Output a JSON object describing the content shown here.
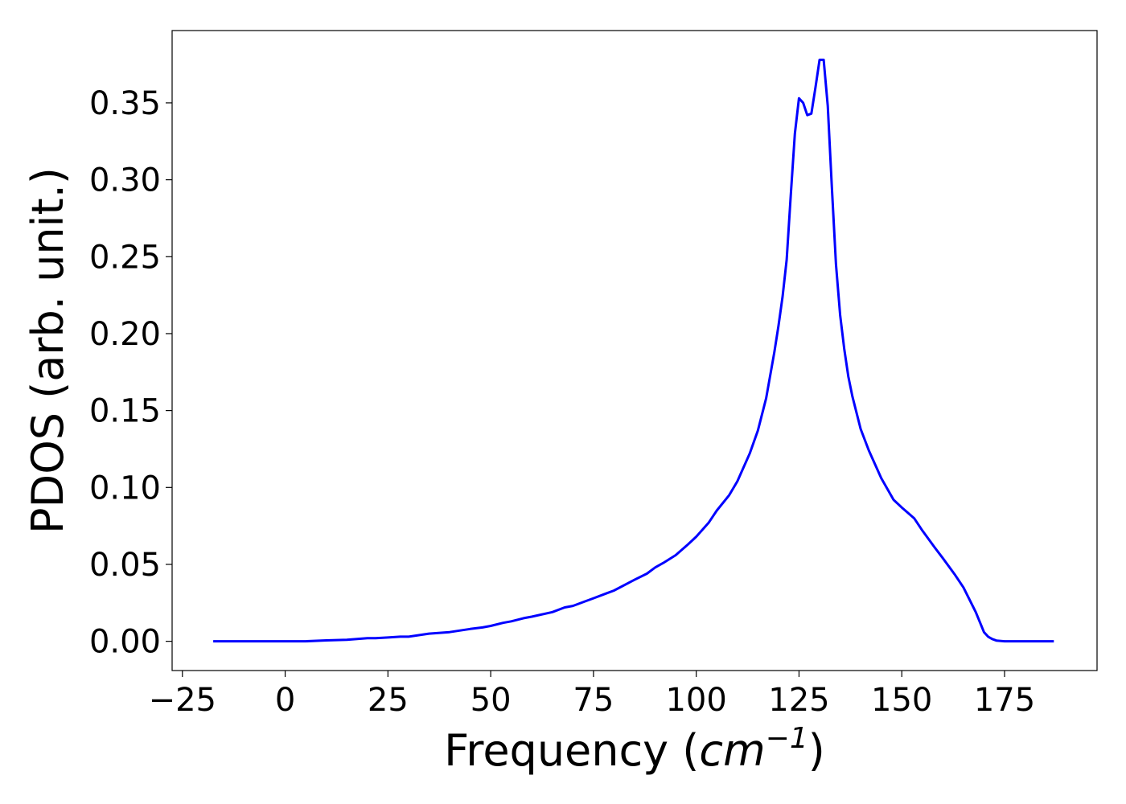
{
  "chart_data": {
    "type": "line",
    "title": "",
    "xlabel": "Frequency (",
    "xlabel_unit_base": "cm",
    "xlabel_unit_exp": "−1",
    "xlabel_suffix": ")",
    "ylabel": "PDOS (arb. unit.)",
    "xlim": [
      -27.5,
      197.5
    ],
    "ylim": [
      -0.019,
      0.397
    ],
    "grid": false,
    "legend": "none",
    "x_ticks": [
      -25,
      0,
      25,
      50,
      75,
      100,
      125,
      150,
      175
    ],
    "x_tick_labels": [
      "−25",
      "0",
      "25",
      "50",
      "75",
      "100",
      "125",
      "150",
      "175"
    ],
    "y_ticks": [
      0.0,
      0.05,
      0.1,
      0.15,
      0.2,
      0.25,
      0.3,
      0.35
    ],
    "y_tick_labels": [
      "0.00",
      "0.05",
      "0.10",
      "0.15",
      "0.20",
      "0.25",
      "0.30",
      "0.35"
    ],
    "series": [
      {
        "color": "#0000ff",
        "x": [
          -17.5,
          -10,
          0,
          5,
          10,
          15,
          20,
          22,
          25,
          28,
          30,
          35,
          40,
          45,
          48,
          50,
          53,
          55,
          58,
          60,
          65,
          68,
          70,
          73,
          75,
          78,
          80,
          85,
          88,
          90,
          92,
          95,
          98,
          100,
          103,
          105,
          108,
          110,
          113,
          115,
          117,
          119,
          120,
          121,
          122,
          123,
          124,
          125,
          126,
          127,
          128,
          129,
          130,
          131,
          132,
          133,
          134,
          135,
          136,
          137,
          138,
          140,
          142,
          145,
          148,
          150,
          153,
          155,
          158,
          160,
          163,
          165,
          168,
          170,
          171,
          172,
          173,
          175,
          180,
          187
        ],
        "y": [
          0.0,
          0.0,
          0.0,
          0.0,
          0.0006,
          0.001,
          0.002,
          0.002,
          0.0025,
          0.003,
          0.003,
          0.005,
          0.006,
          0.008,
          0.009,
          0.01,
          0.012,
          0.013,
          0.015,
          0.016,
          0.019,
          0.022,
          0.023,
          0.026,
          0.028,
          0.031,
          0.033,
          0.04,
          0.044,
          0.048,
          0.051,
          0.056,
          0.063,
          0.068,
          0.077,
          0.085,
          0.095,
          0.104,
          0.122,
          0.137,
          0.158,
          0.188,
          0.205,
          0.224,
          0.248,
          0.29,
          0.33,
          0.353,
          0.35,
          0.342,
          0.343,
          0.36,
          0.378,
          0.378,
          0.348,
          0.295,
          0.245,
          0.212,
          0.19,
          0.172,
          0.159,
          0.138,
          0.124,
          0.106,
          0.092,
          0.087,
          0.08,
          0.072,
          0.061,
          0.054,
          0.043,
          0.035,
          0.019,
          0.006,
          0.003,
          0.0015,
          0.0005,
          0.0,
          0.0,
          0.0
        ]
      }
    ]
  }
}
